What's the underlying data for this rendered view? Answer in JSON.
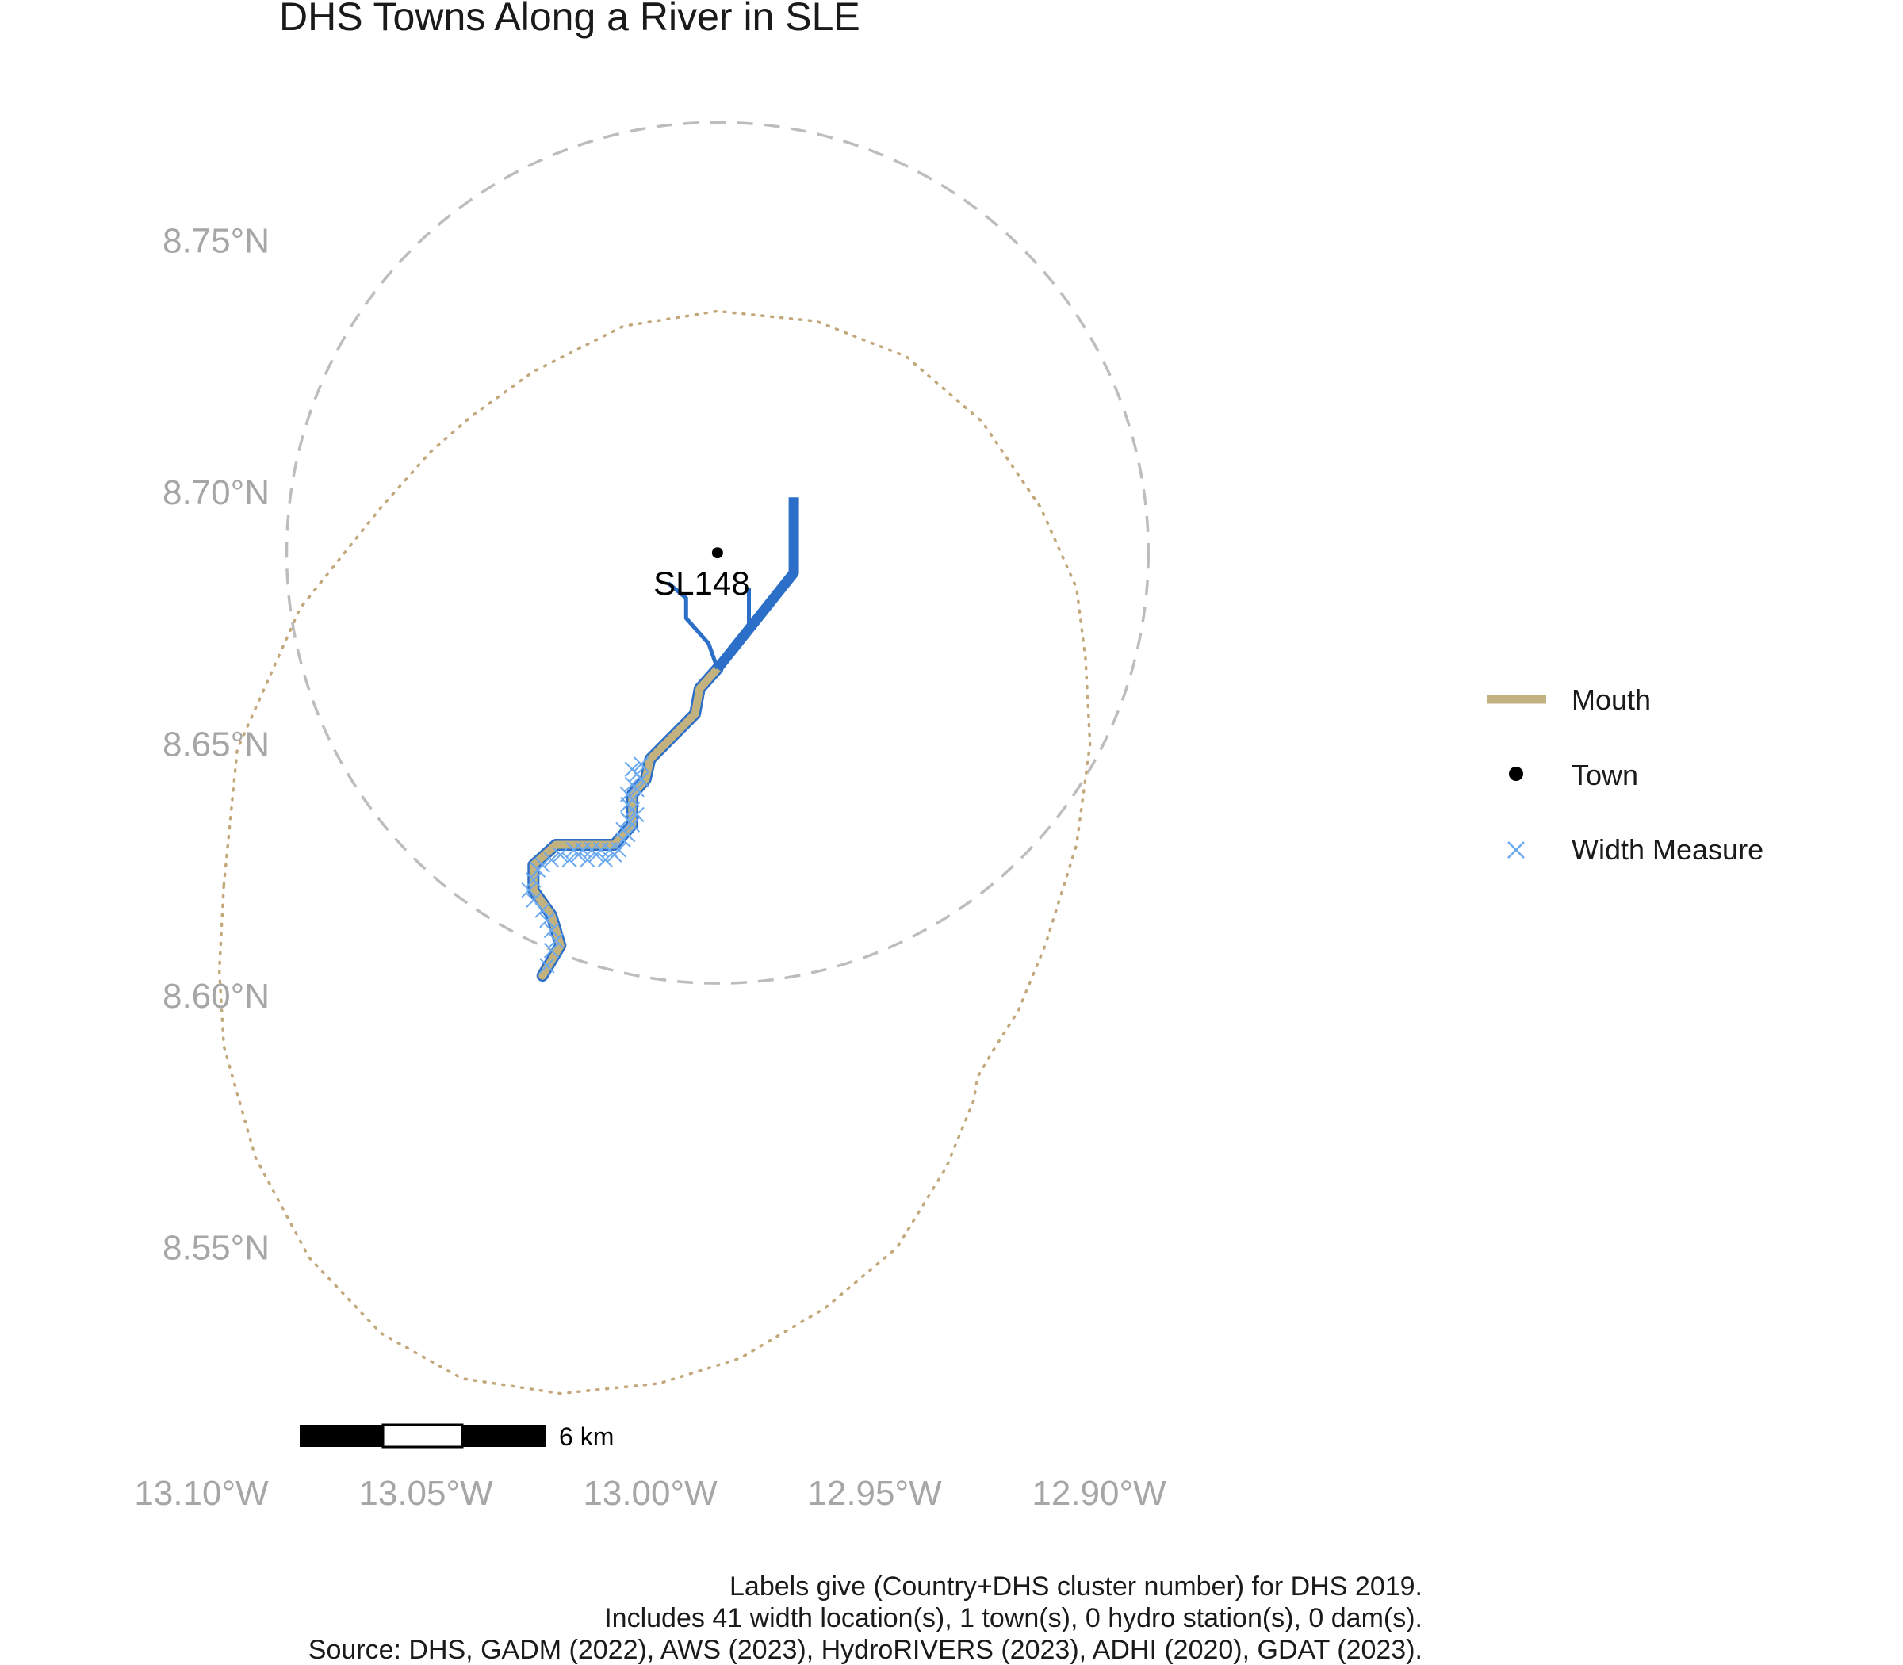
{
  "map": {
    "title": "DHS Towns Along a River in SLE",
    "colors": {
      "mouth": "#C2B280",
      "river": "#2B6FC9",
      "width_measure": "#6AA8F0",
      "town": "#000000",
      "buffer_dashed": "#BDBDBD",
      "buffer_dotted": "#C2A87A"
    },
    "y_axis": {
      "ticks": [
        {
          "value": 8.75,
          "label": "8.75°N"
        },
        {
          "value": 8.7,
          "label": "8.70°N"
        },
        {
          "value": 8.65,
          "label": "8.65°N"
        },
        {
          "value": 8.6,
          "label": "8.60°N"
        },
        {
          "value": 8.55,
          "label": "8.55°N"
        }
      ]
    },
    "x_axis": {
      "ticks": [
        {
          "value": -13.1,
          "label": "13.10°W"
        },
        {
          "value": -13.05,
          "label": "13.05°W"
        },
        {
          "value": -13.0,
          "label": "13.00°W"
        },
        {
          "value": -12.95,
          "label": "12.95°W"
        },
        {
          "value": -12.9,
          "label": "12.90°W"
        }
      ]
    },
    "town": {
      "label": "SL148",
      "lon": -12.985,
      "lat": 8.688
    },
    "legend": {
      "items": [
        {
          "label": "Mouth",
          "symbol": "line"
        },
        {
          "label": "Town",
          "symbol": "dot"
        },
        {
          "label": "Width Measure",
          "symbol": "x"
        }
      ]
    },
    "scale_bar": {
      "label": "6 km"
    },
    "caption": [
      "Labels give (Country+DHS cluster number) for DHS 2019.",
      "Includes 41 width location(s), 1 town(s), 0 hydro station(s), 0 dam(s).",
      "Source: DHS, GADM (2022), AWS (2023), HydroRIVERS (2023), ADHI (2020), GDAT (2023)."
    ],
    "features": {
      "mouth_path": [
        [
          -13.024,
          8.604
        ],
        [
          -13.02,
          8.61
        ],
        [
          -13.022,
          8.616
        ],
        [
          -13.026,
          8.621
        ],
        [
          -13.026,
          8.626
        ],
        [
          -13.021,
          8.63
        ],
        [
          -13.008,
          8.63
        ],
        [
          -13.004,
          8.634
        ],
        [
          -13.004,
          8.64
        ],
        [
          -13.001,
          8.643
        ],
        [
          -13.0,
          8.647
        ],
        [
          -12.99,
          8.656
        ],
        [
          -12.989,
          8.661
        ],
        [
          -12.985,
          8.665
        ]
      ],
      "main_river_path": [
        [
          -12.985,
          8.665
        ],
        [
          -12.968,
          8.684
        ],
        [
          -12.968,
          8.699
        ]
      ],
      "tributary_1": [
        [
          -12.985,
          8.665
        ],
        [
          -12.987,
          8.67
        ],
        [
          -12.992,
          8.675
        ],
        [
          -12.992,
          8.679
        ],
        [
          -12.996,
          8.682
        ]
      ],
      "tributary_2": [
        [
          -12.978,
          8.672
        ],
        [
          -12.978,
          8.681
        ]
      ],
      "dashed_buffer": {
        "center_lon": -12.985,
        "center_lat": 8.688,
        "radius_lon": 0.096,
        "radius_lat": 0.0855
      },
      "dotted_buffer": {
        "path": [
          [
            -13.095,
            8.622
          ],
          [
            -13.092,
            8.649
          ],
          [
            -13.078,
            8.677
          ],
          [
            -13.06,
            8.697
          ],
          [
            -13.049,
            8.708
          ],
          [
            -13.04,
            8.715
          ],
          [
            -13.026,
            8.724
          ],
          [
            -13.006,
            8.733
          ],
          [
            -12.985,
            8.736
          ],
          [
            -12.963,
            8.734
          ],
          [
            -12.943,
            8.727
          ],
          [
            -12.926,
            8.714
          ],
          [
            -12.913,
            8.697
          ],
          [
            -12.905,
            8.681
          ],
          [
            -12.903,
            8.667
          ],
          [
            -12.902,
            8.65
          ],
          [
            -12.905,
            8.63
          ],
          [
            -12.912,
            8.61
          ],
          [
            -12.918,
            8.597
          ],
          [
            -12.923,
            8.59
          ],
          [
            -12.927,
            8.584
          ],
          [
            -12.928,
            8.579
          ],
          [
            -12.934,
            8.566
          ],
          [
            -12.945,
            8.55
          ],
          [
            -12.961,
            8.538
          ],
          [
            -12.98,
            8.528
          ],
          [
            -12.998,
            8.523
          ],
          [
            -13.02,
            8.521
          ],
          [
            -13.042,
            8.524
          ],
          [
            -13.06,
            8.533
          ],
          [
            -13.076,
            8.548
          ],
          [
            -13.088,
            8.568
          ],
          [
            -13.095,
            8.59
          ],
          [
            -13.096,
            8.605
          ],
          [
            -13.095,
            8.622
          ]
        ]
      },
      "width_measures": [
        [
          -13.023,
          8.606
        ],
        [
          -13.022,
          8.609
        ],
        [
          -13.021,
          8.611
        ],
        [
          -13.022,
          8.613
        ],
        [
          -13.023,
          8.615
        ],
        [
          -13.024,
          8.617
        ],
        [
          -13.026,
          8.619
        ],
        [
          -13.027,
          8.621
        ],
        [
          -13.026,
          8.623
        ],
        [
          -13.025,
          8.625
        ],
        [
          -13.024,
          8.626
        ],
        [
          -13.022,
          8.627
        ],
        [
          -13.02,
          8.628
        ],
        [
          -13.018,
          8.627
        ],
        [
          -13.016,
          8.628
        ],
        [
          -13.014,
          8.627
        ],
        [
          -13.012,
          8.628
        ],
        [
          -13.01,
          8.627
        ],
        [
          -13.008,
          8.628
        ],
        [
          -13.007,
          8.629
        ],
        [
          -13.006,
          8.631
        ],
        [
          -13.005,
          8.632
        ],
        [
          -13.006,
          8.633
        ],
        [
          -13.004,
          8.634
        ],
        [
          -13.005,
          8.635
        ],
        [
          -13.003,
          8.636
        ],
        [
          -13.004,
          8.637
        ],
        [
          -13.005,
          8.638
        ],
        [
          -13.004,
          8.639
        ],
        [
          -13.005,
          8.64
        ],
        [
          -13.003,
          8.641
        ],
        [
          -13.004,
          8.642
        ],
        [
          -13.002,
          8.643
        ],
        [
          -13.003,
          8.644
        ],
        [
          -13.004,
          8.645
        ],
        [
          -13.002,
          8.646
        ],
        [
          -13.009,
          8.629
        ],
        [
          -13.011,
          8.629
        ],
        [
          -13.013,
          8.629
        ],
        [
          -13.015,
          8.629
        ],
        [
          -13.017,
          8.629
        ]
      ]
    }
  }
}
